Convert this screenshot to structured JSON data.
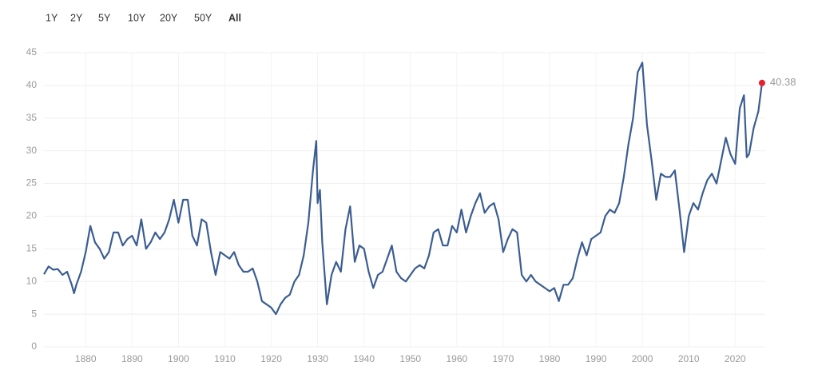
{
  "controls": {
    "ranges": [
      "1Y",
      "2Y",
      "5Y",
      "10Y",
      "20Y",
      "50Y",
      "All"
    ],
    "active": "All"
  },
  "chart_data": {
    "type": "line",
    "color": "#3b5d91",
    "last_point_color": "#e8202e",
    "xlim": [
      1871,
      2026.5
    ],
    "ylim": [
      0,
      45
    ],
    "xticks": [
      1880,
      1890,
      1900,
      1910,
      1920,
      1930,
      1940,
      1950,
      1960,
      1970,
      1980,
      1990,
      2000,
      2010,
      2020
    ],
    "yticks": [
      0,
      5,
      10,
      15,
      20,
      25,
      30,
      35,
      40,
      45
    ],
    "grid": true,
    "x": [
      1871,
      1872,
      1873,
      1874,
      1875,
      1876,
      1877,
      1877.5,
      1878,
      1879,
      1880,
      1881,
      1882,
      1883,
      1884,
      1885,
      1886,
      1887,
      1888,
      1889,
      1890,
      1891,
      1892,
      1893,
      1894,
      1895,
      1896,
      1897,
      1898,
      1899,
      1900,
      1901,
      1902,
      1903,
      1904,
      1905,
      1906,
      1907,
      1908,
      1909,
      1910,
      1911,
      1912,
      1913,
      1914,
      1915,
      1916,
      1917,
      1918,
      1919,
      1920,
      1921,
      1922,
      1923,
      1924,
      1925,
      1926,
      1927,
      1928,
      1929,
      1929.7,
      1930,
      1930.5,
      1931,
      1932,
      1933,
      1934,
      1935,
      1936,
      1937,
      1938,
      1939,
      1940,
      1941,
      1942,
      1943,
      1944,
      1945,
      1946,
      1947,
      1948,
      1949,
      1950,
      1951,
      1952,
      1953,
      1954,
      1955,
      1956,
      1957,
      1958,
      1959,
      1960,
      1961,
      1962,
      1963,
      1964,
      1965,
      1966,
      1967,
      1968,
      1969,
      1970,
      1971,
      1972,
      1973,
      1974,
      1975,
      1976,
      1977,
      1978,
      1979,
      1980,
      1981,
      1982,
      1983,
      1984,
      1985,
      1986,
      1987,
      1988,
      1989,
      1990,
      1991,
      1992,
      1993,
      1994,
      1995,
      1996,
      1997,
      1998,
      1999,
      2000,
      2001,
      2002,
      2003,
      2004,
      2005,
      2006,
      2007,
      2008,
      2009,
      2010,
      2011,
      2012,
      2013,
      2014,
      2015,
      2016,
      2017,
      2018,
      2019,
      2020,
      2021,
      2021.9,
      2022.5,
      2023,
      2024,
      2025,
      2025.8
    ],
    "values": [
      11.1,
      12.3,
      11.8,
      11.9,
      11.0,
      11.5,
      9.5,
      8.2,
      9.5,
      11.5,
      14.5,
      18.5,
      16.0,
      15.0,
      13.5,
      14.5,
      17.5,
      17.5,
      15.5,
      16.5,
      17.0,
      15.5,
      19.5,
      15.0,
      16.0,
      17.5,
      16.5,
      17.5,
      19.5,
      22.5,
      19.0,
      22.5,
      22.5,
      17.0,
      15.5,
      19.5,
      19.0,
      14.5,
      11.0,
      14.5,
      14.0,
      13.5,
      14.5,
      12.5,
      11.5,
      11.5,
      12.0,
      10.0,
      7.0,
      6.5,
      6.0,
      5.0,
      6.5,
      7.5,
      8.0,
      10.0,
      11.0,
      14.0,
      19.0,
      27.0,
      31.5,
      22.0,
      24.0,
      16.0,
      6.5,
      11.0,
      13.0,
      11.5,
      18.0,
      21.5,
      13.0,
      15.5,
      15.0,
      11.5,
      9.0,
      11.0,
      11.5,
      13.5,
      15.5,
      11.5,
      10.5,
      10.0,
      11.0,
      12.0,
      12.5,
      12.0,
      14.0,
      17.5,
      18.0,
      15.5,
      15.5,
      18.5,
      17.5,
      21.0,
      17.5,
      20.0,
      22.0,
      23.5,
      20.5,
      21.5,
      22.0,
      19.5,
      14.5,
      16.5,
      18.0,
      17.5,
      11.0,
      10.0,
      11.0,
      10.0,
      9.5,
      9.0,
      8.5,
      9.0,
      7.0,
      9.5,
      9.5,
      10.5,
      13.5,
      16.0,
      14.0,
      16.5,
      17.0,
      17.5,
      20.0,
      21.0,
      20.5,
      22.0,
      26.0,
      31.0,
      35.0,
      42.0,
      43.5,
      34.0,
      28.5,
      22.5,
      26.5,
      26.0,
      26.0,
      27.0,
      21.0,
      14.5,
      20.0,
      22.0,
      21.0,
      23.5,
      25.5,
      26.5,
      25.0,
      28.5,
      32.0,
      29.5,
      28.0,
      36.5,
      38.5,
      29.0,
      29.5,
      33.5,
      36.0,
      40.38
    ]
  }
}
